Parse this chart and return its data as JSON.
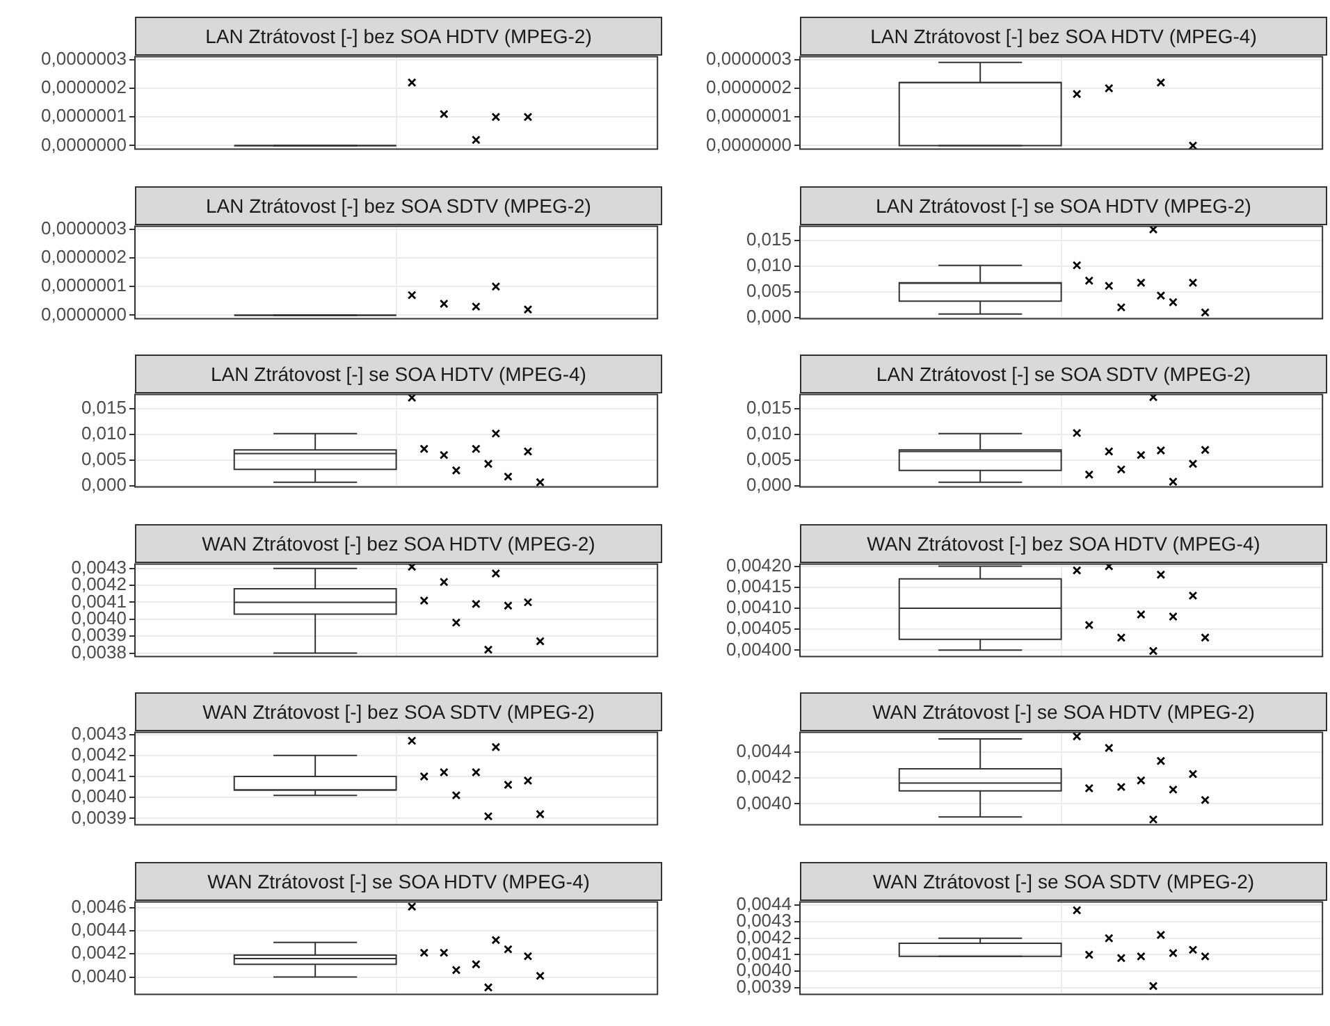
{
  "chart_data": [
    {
      "type": "box",
      "title": "LAN Ztrátovost [-] bez SOA HDTV (MPEG-2)",
      "categories": [
        null
      ],
      "boxes": [
        {
          "low": 0,
          "q1": 0,
          "median": 0,
          "q3": 0,
          "high": 0
        }
      ],
      "series": [
        {
          "type": "scatter",
          "color": "#000000",
          "x": [
            null,
            null,
            null,
            null,
            null
          ],
          "values": [
            2.2e-07,
            1e-07,
            1.1e-07,
            1e-07,
            2e-08
          ]
        }
      ],
      "ylim": [
        -1.2e-08,
        3.1e-07
      ],
      "yticks": [
        {
          "value": 0,
          "label": "0,0000000"
        },
        {
          "value": 1e-07,
          "label": "0,0000001"
        },
        {
          "value": 2e-07,
          "label": "0,0000002"
        },
        {
          "value": 3e-07,
          "label": "0,0000003"
        }
      ],
      "tick_labels": "y",
      "grid": true,
      "marker": "cross"
    },
    {
      "type": "box",
      "title": "LAN Ztrátovost [-] bez SOA HDTV (MPEG-4)",
      "categories": [
        null
      ],
      "boxes": [
        {
          "low": 0,
          "q1": 0,
          "median": 2.2e-07,
          "q3": 2.2e-07,
          "high": 2.9e-07
        }
      ],
      "series": [
        {
          "type": "scatter",
          "color": "#000000",
          "x": [
            null,
            null,
            null,
            null
          ],
          "values": [
            1.8e-07,
            2.2e-07,
            2e-07,
            0
          ]
        }
      ],
      "ylim": [
        -1.2e-08,
        3.1e-07
      ],
      "yticks": [
        {
          "value": 0,
          "label": "0,0000000"
        },
        {
          "value": 1e-07,
          "label": "0,0000001"
        },
        {
          "value": 2e-07,
          "label": "0,0000002"
        },
        {
          "value": 3e-07,
          "label": "0,0000003"
        }
      ],
      "tick_labels": "y",
      "grid": true,
      "marker": "cross"
    },
    {
      "type": "box",
      "title": "LAN Ztrátovost [-] bez SOA SDTV (MPEG-2)",
      "categories": [
        null
      ],
      "boxes": [
        {
          "low": 0,
          "q1": 0,
          "median": 0,
          "q3": 0,
          "high": 0
        }
      ],
      "series": [
        {
          "type": "scatter",
          "color": "#000000",
          "x": [
            null,
            null,
            null,
            null,
            null
          ],
          "values": [
            7e-08,
            1e-07,
            4e-08,
            2e-08,
            3e-08
          ]
        }
      ],
      "ylim": [
        -1.2e-08,
        3.1e-07
      ],
      "yticks": [
        {
          "value": 0,
          "label": "0,0000000"
        },
        {
          "value": 1e-07,
          "label": "0,0000001"
        },
        {
          "value": 2e-07,
          "label": "0,0000002"
        },
        {
          "value": 3e-07,
          "label": "0,0000003"
        }
      ],
      "tick_labels": "y",
      "grid": true,
      "marker": "cross"
    },
    {
      "type": "box",
      "title": "LAN Ztrátovost [-] se SOA HDTV (MPEG-2)",
      "categories": [
        null
      ],
      "boxes": [
        {
          "low": 0.0007,
          "q1": 0.0032,
          "median": 0.0067,
          "q3": 0.0068,
          "high": 0.0102
        }
      ],
      "series": [
        {
          "type": "scatter",
          "color": "#000000",
          "x": [
            null,
            null,
            null,
            null,
            null,
            null,
            null,
            null,
            null,
            null
          ],
          "values": [
            0.0102,
            0.0043,
            0.0062,
            0.0068,
            0.0068,
            0.0072,
            0.003,
            0.002,
            0.001,
            0.0172
          ]
        }
      ],
      "ylim": [
        -0.0002,
        0.0178
      ],
      "yticks": [
        {
          "value": 0,
          "label": "0,000"
        },
        {
          "value": 0.005,
          "label": "0,005"
        },
        {
          "value": 0.01,
          "label": "0,010"
        },
        {
          "value": 0.015,
          "label": "0,015"
        }
      ],
      "tick_labels": "y",
      "grid": true,
      "marker": "cross"
    },
    {
      "type": "box",
      "title": "LAN Ztrátovost [-] se SOA HDTV (MPEG-4)",
      "categories": [
        null
      ],
      "boxes": [
        {
          "low": 0.0007,
          "q1": 0.0032,
          "median": 0.0063,
          "q3": 0.007,
          "high": 0.0102
        }
      ],
      "series": [
        {
          "type": "scatter",
          "color": "#000000",
          "x": [
            null,
            null,
            null,
            null,
            null,
            null,
            null,
            null,
            null,
            null
          ],
          "values": [
            0.0172,
            0.0102,
            0.006,
            0.0067,
            0.0072,
            0.0072,
            0.0018,
            0.003,
            0.0007,
            0.0043
          ]
        }
      ],
      "ylim": [
        -0.0002,
        0.0178
      ],
      "yticks": [
        {
          "value": 0,
          "label": "0,000"
        },
        {
          "value": 0.005,
          "label": "0,005"
        },
        {
          "value": 0.01,
          "label": "0,010"
        },
        {
          "value": 0.015,
          "label": "0,015"
        }
      ],
      "tick_labels": "y",
      "grid": true,
      "marker": "cross"
    },
    {
      "type": "box",
      "title": "LAN Ztrátovost [-] se SOA SDTV (MPEG-2)",
      "categories": [
        null
      ],
      "boxes": [
        {
          "low": 0.0007,
          "q1": 0.003,
          "median": 0.0067,
          "q3": 0.007,
          "high": 0.0102
        }
      ],
      "series": [
        {
          "type": "scatter",
          "color": "#000000",
          "x": [
            null,
            null,
            null,
            null,
            null,
            null,
            null,
            null,
            null,
            null
          ],
          "values": [
            0.0103,
            0.0069,
            0.0067,
            0.0043,
            0.006,
            0.0022,
            0.0008,
            0.0032,
            0.007,
            0.0173
          ]
        }
      ],
      "ylim": [
        -0.0002,
        0.0178
      ],
      "yticks": [
        {
          "value": 0,
          "label": "0,000"
        },
        {
          "value": 0.005,
          "label": "0,005"
        },
        {
          "value": 0.01,
          "label": "0,010"
        },
        {
          "value": 0.015,
          "label": "0,015"
        }
      ],
      "tick_labels": "y",
      "grid": true,
      "marker": "cross"
    },
    {
      "type": "box",
      "title": "WAN Ztrátovost [-] bez SOA HDTV (MPEG-2)",
      "categories": [
        null
      ],
      "boxes": [
        {
          "low": 0.0038,
          "q1": 0.00403,
          "median": 0.0041,
          "q3": 0.00418,
          "high": 0.0043
        }
      ],
      "series": [
        {
          "type": "scatter",
          "color": "#000000",
          "x": [
            null,
            null,
            null,
            null,
            null,
            null,
            null,
            null,
            null,
            null
          ],
          "values": [
            0.00431,
            0.00427,
            0.00422,
            0.0041,
            0.00409,
            0.00411,
            0.00408,
            0.00398,
            0.00387,
            0.00382
          ]
        }
      ],
      "ylim": [
        0.00378,
        0.004325
      ],
      "yticks": [
        {
          "value": 0.0038,
          "label": "0,0038"
        },
        {
          "value": 0.0039,
          "label": "0,0039"
        },
        {
          "value": 0.004,
          "label": "0,0040"
        },
        {
          "value": 0.0041,
          "label": "0,0041"
        },
        {
          "value": 0.0042,
          "label": "0,0042"
        },
        {
          "value": 0.0043,
          "label": "0,0043"
        }
      ],
      "tick_labels": "y",
      "grid": true,
      "marker": "cross"
    },
    {
      "type": "box",
      "title": "WAN Ztrátovost [-] bez SOA HDTV (MPEG-4)",
      "categories": [
        null
      ],
      "boxes": [
        {
          "low": 0.004,
          "q1": 0.004026,
          "median": 0.0041,
          "q3": 0.00417,
          "high": 0.0042
        }
      ],
      "series": [
        {
          "type": "scatter",
          "color": "#000000",
          "x": [
            null,
            null,
            null,
            null,
            null,
            null,
            null,
            null,
            null,
            null
          ],
          "values": [
            0.00419,
            0.00418,
            0.0042,
            0.00413,
            0.004085,
            0.00406,
            0.00408,
            0.00403,
            0.00403,
            0.003998
          ]
        }
      ],
      "ylim": [
        0.003985,
        0.004205
      ],
      "yticks": [
        {
          "value": 0.004,
          "label": "0,00400"
        },
        {
          "value": 0.00405,
          "label": "0,00405"
        },
        {
          "value": 0.0041,
          "label": "0,00410"
        },
        {
          "value": 0.00415,
          "label": "0,00415"
        },
        {
          "value": 0.0042,
          "label": "0,00420"
        }
      ],
      "tick_labels": "y",
      "grid": true,
      "marker": "cross"
    },
    {
      "type": "box",
      "title": "WAN Ztrátovost [-] bez SOA SDTV (MPEG-2)",
      "categories": [
        null
      ],
      "boxes": [
        {
          "low": 0.00401,
          "q1": 0.004035,
          "median": 0.004035,
          "q3": 0.0041,
          "high": 0.0042
        }
      ],
      "series": [
        {
          "type": "scatter",
          "color": "#000000",
          "x": [
            null,
            null,
            null,
            null,
            null,
            null,
            null,
            null,
            null,
            null
          ],
          "values": [
            0.00427,
            0.00424,
            0.00412,
            0.00408,
            0.00412,
            0.0041,
            0.00406,
            0.00401,
            0.00392,
            0.00391
          ]
        }
      ],
      "ylim": [
        0.00387,
        0.00431
      ],
      "yticks": [
        {
          "value": 0.0039,
          "label": "0,0039"
        },
        {
          "value": 0.004,
          "label": "0,0040"
        },
        {
          "value": 0.0041,
          "label": "0,0041"
        },
        {
          "value": 0.0042,
          "label": "0,0042"
        },
        {
          "value": 0.0043,
          "label": "0,0043"
        }
      ],
      "tick_labels": "y",
      "grid": true,
      "marker": "cross"
    },
    {
      "type": "box",
      "title": "WAN Ztrátovost [-] se SOA HDTV (MPEG-2)",
      "categories": [
        null
      ],
      "boxes": [
        {
          "low": 0.0039,
          "q1": 0.0041,
          "median": 0.00416,
          "q3": 0.00427,
          "high": 0.0045
        }
      ],
      "series": [
        {
          "type": "scatter",
          "color": "#000000",
          "x": [
            null,
            null,
            null,
            null,
            null,
            null,
            null,
            null,
            null,
            null
          ],
          "values": [
            0.00452,
            0.00433,
            0.00443,
            0.00423,
            0.00418,
            0.00412,
            0.00411,
            0.00413,
            0.00403,
            0.00388
          ]
        }
      ],
      "ylim": [
        0.00384,
        0.00455
      ],
      "yticks": [
        {
          "value": 0.004,
          "label": "0,0040"
        },
        {
          "value": 0.0042,
          "label": "0,0042"
        },
        {
          "value": 0.0044,
          "label": "0,0044"
        }
      ],
      "tick_labels": "y",
      "grid": true,
      "marker": "cross"
    },
    {
      "type": "box",
      "title": "WAN Ztrátovost [-] se SOA HDTV (MPEG-4)",
      "categories": [
        null
      ],
      "boxes": [
        {
          "low": 0.004,
          "q1": 0.00411,
          "median": 0.00416,
          "q3": 0.00419,
          "high": 0.0043
        }
      ],
      "series": [
        {
          "type": "scatter",
          "color": "#000000",
          "x": [
            null,
            null,
            null,
            null,
            null,
            null,
            null,
            null,
            null,
            null
          ],
          "values": [
            0.00461,
            0.00432,
            0.00421,
            0.00418,
            0.00411,
            0.00421,
            0.00424,
            0.00406,
            0.00401,
            0.00391
          ]
        }
      ],
      "ylim": [
        0.00385,
        0.00465
      ],
      "yticks": [
        {
          "value": 0.004,
          "label": "0,0040"
        },
        {
          "value": 0.0042,
          "label": "0,0042"
        },
        {
          "value": 0.0044,
          "label": "0,0044"
        },
        {
          "value": 0.0046,
          "label": "0,0046"
        }
      ],
      "tick_labels": "y",
      "grid": true,
      "marker": "cross"
    },
    {
      "type": "box",
      "title": "WAN Ztrátovost [-] se SOA SDTV (MPEG-2)",
      "categories": [
        null
      ],
      "boxes": [
        {
          "low": 0.00409,
          "q1": 0.00409,
          "median": 0.00417,
          "q3": 0.00417,
          "high": 0.0042
        }
      ],
      "series": [
        {
          "type": "scatter",
          "color": "#000000",
          "x": [
            null,
            null,
            null,
            null,
            null,
            null,
            null,
            null,
            null,
            null
          ],
          "values": [
            0.00437,
            0.00422,
            0.0042,
            0.00413,
            0.00409,
            0.0041,
            0.00411,
            0.00408,
            0.00409,
            0.00391
          ]
        }
      ],
      "ylim": [
        0.00386,
        0.00442
      ],
      "yticks": [
        {
          "value": 0.0039,
          "label": "0,0039"
        },
        {
          "value": 0.004,
          "label": "0,0040"
        },
        {
          "value": 0.0041,
          "label": "0,0041"
        },
        {
          "value": 0.0042,
          "label": "0,0042"
        },
        {
          "value": 0.0043,
          "label": "0,0043"
        },
        {
          "value": 0.0044,
          "label": "0,0044"
        }
      ],
      "tick_labels": "y",
      "grid": true,
      "marker": "cross"
    }
  ]
}
